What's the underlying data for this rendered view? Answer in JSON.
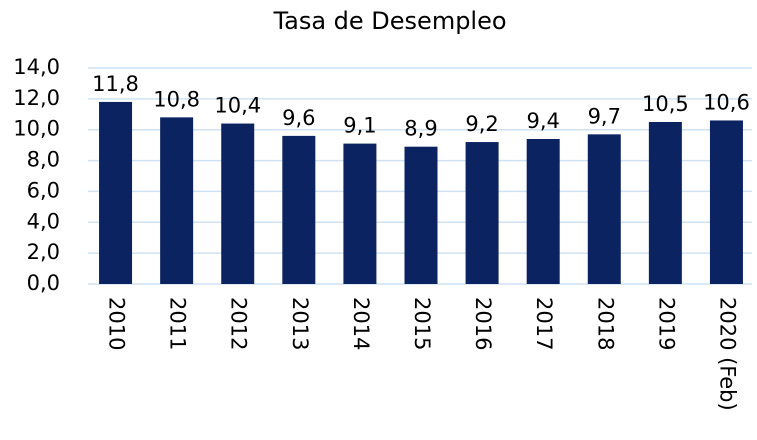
{
  "chart_data": {
    "type": "bar",
    "title": "Tasa de Desempleo",
    "categories": [
      "2010",
      "2011",
      "2012",
      "2013",
      "2014",
      "2015",
      "2016",
      "2017",
      "2018",
      "2019",
      "2020 (Feb)"
    ],
    "values": [
      11.8,
      10.8,
      10.4,
      9.6,
      9.1,
      8.9,
      9.2,
      9.4,
      9.7,
      10.5,
      10.6
    ],
    "value_labels": [
      "11,8",
      "10,8",
      "10,4",
      "9,6",
      "9,1",
      "8,9",
      "9,2",
      "9,4",
      "9,7",
      "10,5",
      "10,6"
    ],
    "color": "#0b2361",
    "ylim": [
      0,
      14
    ],
    "yticks": [
      {
        "value": 0,
        "label": "0,0"
      },
      {
        "value": 2,
        "label": "2,0"
      },
      {
        "value": 4,
        "label": "4,0"
      },
      {
        "value": 6,
        "label": "6,0"
      },
      {
        "value": 8,
        "label": "8,0"
      },
      {
        "value": 10,
        "label": "10,0"
      },
      {
        "value": 12,
        "label": "12,0"
      },
      {
        "value": 14,
        "label": "14,0"
      }
    ],
    "grid": true
  }
}
